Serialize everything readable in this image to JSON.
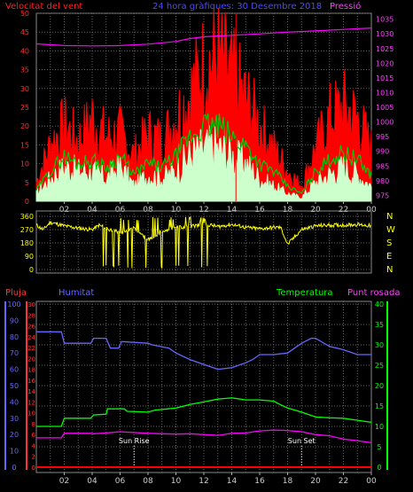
{
  "header": {
    "left_title": "Velocitat del vent",
    "center_title": "24 hora gràfiques:  30 Desembre 2018",
    "right_title": "Pressió"
  },
  "chart_data": [
    {
      "type": "line",
      "panel": "wind-pressure",
      "left_axis": {
        "label": "Velocitat del vent",
        "ticks": [
          0,
          5,
          10,
          15,
          20,
          25,
          30,
          35,
          40,
          45,
          50
        ],
        "ylim": [
          0,
          50
        ]
      },
      "right_axis": {
        "label": "Pressió",
        "ticks": [
          975,
          980,
          985,
          990,
          995,
          1000,
          1005,
          1010,
          1015,
          1020,
          1025,
          1030,
          1035
        ],
        "ylim": [
          973,
          1037
        ]
      },
      "x_ticks": [
        "02",
        "04",
        "06",
        "08",
        "10",
        "12",
        "14",
        "16",
        "18",
        "20",
        "22",
        "00"
      ],
      "colors": {
        "gust": "#ff0000",
        "avg": "#00cc00",
        "min": "#ccffcc",
        "pressure": "#ff00ff",
        "marker": "#ff0000"
      },
      "marker_hour": 14.3,
      "series": [
        {
          "name": "Pressió",
          "x": [
            0,
            2,
            4,
            6,
            8,
            10,
            11,
            12,
            14,
            16,
            18,
            20,
            22,
            24
          ],
          "y": [
            1026.6,
            1026.0,
            1025.9,
            1026.0,
            1026.5,
            1027.4,
            1028.4,
            1029.0,
            1029.5,
            1030.0,
            1030.6,
            1031.0,
            1031.5,
            1032.0
          ]
        },
        {
          "name": "Ratxa",
          "x": [
            0,
            1,
            2,
            3,
            4,
            5,
            6,
            7,
            8,
            9,
            10,
            11,
            12,
            13,
            14,
            15,
            16,
            17,
            18,
            19,
            20,
            21,
            22,
            23,
            24
          ],
          "y": [
            5,
            15,
            20,
            16,
            22,
            17,
            18,
            12,
            18,
            16,
            22,
            28,
            36,
            38,
            33,
            27,
            20,
            14,
            8,
            4,
            14,
            22,
            25,
            22,
            14
          ]
        },
        {
          "name": "Mitjana",
          "x": [
            0,
            1,
            2,
            3,
            4,
            5,
            6,
            7,
            8,
            9,
            10,
            11,
            12,
            13,
            14,
            15,
            16,
            17,
            18,
            19,
            20,
            21,
            22,
            23,
            24
          ],
          "y": [
            3,
            8,
            12,
            10,
            11,
            9,
            12,
            7,
            10,
            9,
            12,
            17,
            20,
            20,
            17,
            15,
            10,
            8,
            4,
            2,
            8,
            11,
            13,
            11,
            7
          ]
        },
        {
          "name": "Mínim",
          "x": [
            0,
            1,
            2,
            3,
            4,
            5,
            6,
            7,
            8,
            9,
            10,
            11,
            12,
            13,
            14,
            15,
            16,
            17,
            18,
            19,
            20,
            21,
            22,
            23,
            24
          ],
          "y": [
            2,
            6,
            9,
            8,
            8,
            6,
            9,
            4,
            7,
            6,
            8,
            12,
            14,
            14,
            12,
            10,
            6,
            4,
            2,
            1,
            5,
            7,
            9,
            7,
            4
          ]
        }
      ]
    },
    {
      "type": "line",
      "panel": "wind-direction",
      "left_axis": {
        "ticks": [
          0,
          90,
          180,
          270,
          360
        ],
        "ylim": [
          0,
          360
        ]
      },
      "right_labels": [
        "N",
        "W",
        "S",
        "E",
        "N"
      ],
      "colors": {
        "direction": "#ffff00"
      },
      "series": [
        {
          "name": "Direcció",
          "x": [
            0,
            0.5,
            1,
            2,
            3,
            4,
            4.5,
            5,
            6,
            7,
            8,
            9,
            10,
            11,
            12,
            12.5,
            13,
            14,
            15,
            16,
            17,
            17.5,
            18,
            19,
            20,
            21,
            22,
            23,
            24
          ],
          "y": [
            300,
            270,
            320,
            295,
            280,
            270,
            300,
            280,
            250,
            280,
            200,
            260,
            285,
            290,
            305,
            300,
            290,
            305,
            285,
            275,
            285,
            285,
            170,
            270,
            295,
            300,
            300,
            305,
            295
          ]
        }
      ]
    },
    {
      "type": "line",
      "panel": "climate",
      "left_axes": [
        {
          "label": "Pluja",
          "ticks": [
            0,
            2,
            4,
            6,
            8,
            10,
            12,
            14,
            16,
            18,
            20,
            22,
            24,
            26,
            28,
            30
          ],
          "ylim": [
            0,
            30
          ],
          "color": "#ff3333"
        },
        {
          "label": "Humitat",
          "ticks": [
            0,
            10,
            20,
            30,
            40,
            50,
            60,
            70,
            80,
            90,
            100
          ],
          "ylim": [
            0,
            100
          ],
          "color": "#6666ff"
        }
      ],
      "right_axes": [
        {
          "label": "Temperatura",
          "ticks": [
            0,
            5,
            10,
            15,
            20,
            25,
            30,
            35,
            40
          ],
          "ylim": [
            0,
            40
          ],
          "color": "#00ff00"
        },
        {
          "label": "Punt rosada",
          "color": "#ff00ff"
        }
      ],
      "annotations": [
        {
          "text": "Sun Rise",
          "hour": 7.0
        },
        {
          "text": "Sun Set",
          "hour": 19.0
        }
      ],
      "series": [
        {
          "name": "Humitat",
          "color": "#6666ff",
          "x": [
            0,
            1.8,
            2,
            3.9,
            4.1,
            5,
            5.3,
            5.9,
            6.1,
            8,
            8.3,
            9.5,
            10,
            11,
            12,
            13,
            14,
            15,
            15.5,
            16,
            17,
            18,
            19,
            19.7,
            20,
            21,
            22,
            23,
            24
          ],
          "y": [
            83,
            83,
            76,
            76,
            79,
            79,
            73,
            73,
            77,
            76,
            75,
            73,
            70,
            66,
            63,
            60,
            61,
            64,
            66,
            69,
            69,
            70,
            76,
            79,
            79,
            74,
            72,
            69,
            69
          ]
        },
        {
          "name": "Temperatura",
          "color": "#00ff00",
          "x": [
            0,
            1.8,
            2,
            3.9,
            4.1,
            5,
            5.1,
            6.3,
            6.5,
            8,
            8.5,
            10,
            11,
            12,
            13,
            14,
            15,
            16,
            17,
            17.5,
            18,
            19,
            20,
            21,
            22,
            23,
            24
          ],
          "y": [
            10,
            10,
            12,
            12,
            12.8,
            13,
            14.3,
            14.3,
            13.7,
            13.5,
            14,
            14.5,
            15.4,
            16,
            16.7,
            17,
            16.5,
            16.5,
            16.2,
            15.3,
            14.5,
            13.5,
            12.3,
            12.1,
            12,
            11.5,
            11
          ]
        },
        {
          "name": "Punt rosada",
          "color": "#ff00ff",
          "x": [
            0,
            1.8,
            2,
            3.9,
            4.1,
            5,
            6,
            7,
            8,
            9,
            10,
            11,
            12,
            13,
            14,
            15,
            16,
            17,
            18,
            19,
            20,
            21,
            22,
            23,
            24
          ],
          "y": [
            7.2,
            7.2,
            8.3,
            8.3,
            8.2,
            8.4,
            8.7,
            8.5,
            8.3,
            8.2,
            8.1,
            8.2,
            8.0,
            7.8,
            8.3,
            8.4,
            8.9,
            9.1,
            9.0,
            8.7,
            8.0,
            7.7,
            6.9,
            6.5,
            6.0
          ]
        },
        {
          "name": "Pluja",
          "color": "#ff0000",
          "x": [
            0,
            24
          ],
          "y": [
            0,
            0
          ]
        }
      ]
    }
  ]
}
